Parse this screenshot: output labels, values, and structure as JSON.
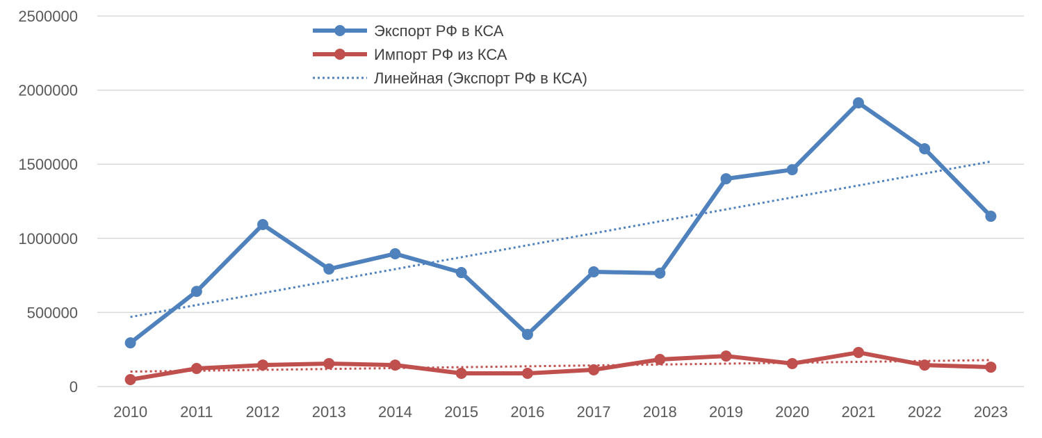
{
  "chart_data": {
    "type": "line",
    "title": "",
    "xlabel": "",
    "ylabel": "",
    "categories": [
      "2010",
      "2011",
      "2012",
      "2013",
      "2014",
      "2015",
      "2016",
      "2017",
      "2018",
      "2019",
      "2020",
      "2021",
      "2022",
      "2023"
    ],
    "ylim": [
      0,
      2500000
    ],
    "yticks": [
      "0",
      "500000",
      "1000000",
      "1500000",
      "2000000",
      "2500000"
    ],
    "grid": true,
    "legend_position": "top-center",
    "series": [
      {
        "name": "Экспорт РФ в КСА",
        "color": "#4F81BD",
        "values": [
          295000,
          642000,
          1093000,
          793000,
          896000,
          769000,
          352000,
          774000,
          765000,
          1402000,
          1463000,
          1914000,
          1604000,
          1149000
        ]
      },
      {
        "name": "Импорт РФ из КСА",
        "color": "#C0504D",
        "values": [
          47000,
          122000,
          145000,
          155000,
          145000,
          89000,
          89000,
          113000,
          183000,
          206000,
          155000,
          230000,
          145000,
          131000
        ]
      }
    ],
    "trendlines": [
      {
        "name": "Линейная (Экспорт РФ в КСА)",
        "series": 0,
        "color": "#4F81BD",
        "in_legend": true
      },
      {
        "name": "",
        "series": 1,
        "color": "#C0504D",
        "in_legend": false
      }
    ]
  }
}
